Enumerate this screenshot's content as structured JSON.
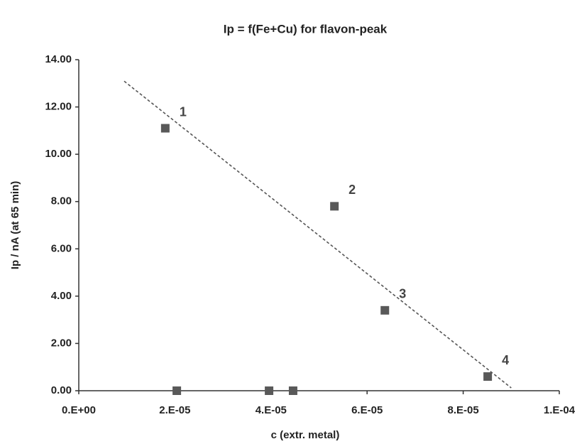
{
  "chart_data": {
    "type": "scatter",
    "title": "Ip = f(Fe+Cu) for flavon-peak",
    "x_label": "c (extr. metal)",
    "y_label": "Ip / nA (at 65 min)",
    "x": [
      1.8e-05,
      5.32e-05,
      6.37e-05,
      8.51e-05,
      2.04e-05,
      3.96e-05,
      4.46e-05
    ],
    "series": [
      {
        "color": "#595959",
        "values": [
          11.1,
          7.8,
          3.4,
          0.6,
          0,
          0,
          0
        ]
      }
    ],
    "point_labels": [
      "1",
      "2",
      "3",
      "4",
      null,
      null,
      null
    ],
    "trendline": {
      "x": [
        9.45e-06,
        9e-05
      ],
      "y": [
        13.09,
        0.12
      ],
      "color": "#555555"
    },
    "xlim": [
      0,
      0.0001
    ],
    "ylim": [
      0,
      14
    ],
    "xticks": [
      {
        "value": 0,
        "label": "0.E+00"
      },
      {
        "value": 2e-05,
        "label": "2.E-05"
      },
      {
        "value": 4e-05,
        "label": "4.E-05"
      },
      {
        "value": 6e-05,
        "label": "6.E-05"
      },
      {
        "value": 8e-05,
        "label": "8.E-05"
      },
      {
        "value": 0.0001,
        "label": "1.E-04"
      }
    ],
    "yticks": [
      {
        "value": 0,
        "label": "0.00"
      },
      {
        "value": 2,
        "label": "2.00"
      },
      {
        "value": 4,
        "label": "4.00"
      },
      {
        "value": 6,
        "label": "6.00"
      },
      {
        "value": 8,
        "label": "8.00"
      },
      {
        "value": 10,
        "label": "10.00"
      },
      {
        "value": 12,
        "label": "12.00"
      },
      {
        "value": 14,
        "label": "14.00"
      }
    ],
    "grid": false
  }
}
